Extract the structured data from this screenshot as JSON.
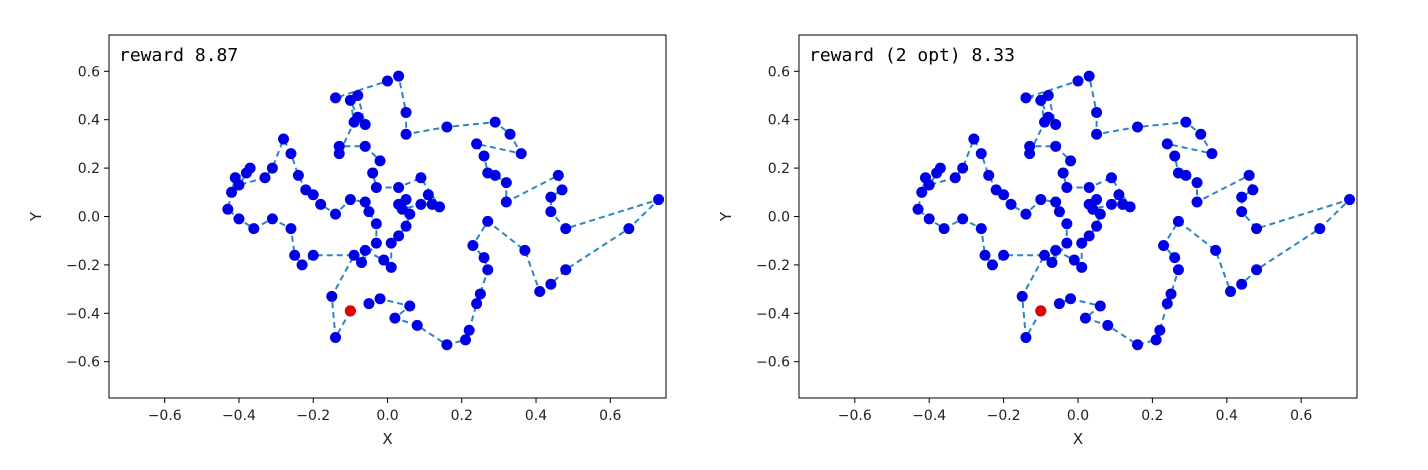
{
  "chart_data": [
    {
      "type": "line",
      "annotation": "reward 8.87",
      "xlabel": "X",
      "ylabel": "Y",
      "xlim": [
        -0.75,
        0.75
      ],
      "ylim": [
        -0.75,
        0.75
      ],
      "xticks": [
        -0.6,
        -0.4,
        -0.2,
        0.0,
        0.2,
        0.4,
        0.6
      ],
      "xtick_labels": [
        "−0.6",
        "−0.4",
        "−0.2",
        "0.0",
        "0.2",
        "0.4",
        "0.6"
      ],
      "yticks": [
        -0.6,
        -0.4,
        -0.2,
        0.0,
        0.2,
        0.4,
        0.6
      ],
      "ytick_labels": [
        "−0.6",
        "−0.4",
        "−0.2",
        "0.0",
        "0.2",
        "0.4",
        "0.6"
      ],
      "grid": false,
      "line_color": "#2e86c1",
      "point_color": "#0000e6",
      "start_color": "#e60000",
      "path": [
        [
          -0.1,
          -0.39
        ],
        [
          -0.14,
          -0.5
        ],
        [
          -0.15,
          -0.33
        ],
        [
          -0.09,
          -0.16
        ],
        [
          -0.2,
          -0.16
        ],
        [
          -0.23,
          -0.2
        ],
        [
          -0.25,
          -0.16
        ],
        [
          -0.26,
          -0.05
        ],
        [
          -0.31,
          -0.01
        ],
        [
          -0.36,
          -0.05
        ],
        [
          -0.4,
          -0.01
        ],
        [
          -0.43,
          0.03
        ],
        [
          -0.42,
          0.1
        ],
        [
          -0.41,
          0.16
        ],
        [
          -0.38,
          0.18
        ],
        [
          -0.37,
          0.2
        ],
        [
          -0.4,
          0.13
        ],
        [
          -0.33,
          0.16
        ],
        [
          -0.31,
          0.2
        ],
        [
          -0.28,
          0.32
        ],
        [
          -0.26,
          0.26
        ],
        [
          -0.24,
          0.17
        ],
        [
          -0.22,
          0.11
        ],
        [
          -0.2,
          0.09
        ],
        [
          -0.18,
          0.05
        ],
        [
          -0.14,
          0.01
        ],
        [
          -0.1,
          0.07
        ],
        [
          -0.06,
          0.06
        ],
        [
          -0.05,
          0.02
        ],
        [
          -0.03,
          -0.03
        ],
        [
          -0.03,
          -0.11
        ],
        [
          -0.07,
          -0.19
        ],
        [
          -0.06,
          -0.14
        ],
        [
          -0.01,
          -0.18
        ],
        [
          0.01,
          -0.21
        ],
        [
          0.01,
          -0.11
        ],
        [
          0.03,
          -0.08
        ],
        [
          0.05,
          -0.04
        ],
        [
          0.06,
          0.01
        ],
        [
          0.03,
          0.05
        ],
        [
          0.05,
          0.07
        ],
        [
          0.04,
          0.03
        ],
        [
          0.09,
          0.05
        ],
        [
          0.11,
          0.09
        ],
        [
          0.12,
          0.05
        ],
        [
          0.14,
          0.04
        ],
        [
          0.09,
          0.16
        ],
        [
          0.03,
          0.12
        ],
        [
          -0.03,
          0.12
        ],
        [
          -0.04,
          0.18
        ],
        [
          -0.02,
          0.23
        ],
        [
          -0.06,
          0.29
        ],
        [
          -0.13,
          0.29
        ],
        [
          -0.13,
          0.26
        ],
        [
          -0.09,
          0.39
        ],
        [
          -0.1,
          0.48
        ],
        [
          -0.08,
          0.41
        ],
        [
          -0.06,
          0.38
        ],
        [
          -0.08,
          0.5
        ],
        [
          -0.14,
          0.49
        ],
        [
          0.0,
          0.56
        ],
        [
          0.03,
          0.58
        ],
        [
          0.05,
          0.43
        ],
        [
          0.05,
          0.34
        ],
        [
          0.16,
          0.37
        ],
        [
          0.29,
          0.39
        ],
        [
          0.33,
          0.34
        ],
        [
          0.36,
          0.26
        ],
        [
          0.24,
          0.3
        ],
        [
          0.26,
          0.25
        ],
        [
          0.27,
          0.18
        ],
        [
          0.29,
          0.17
        ],
        [
          0.32,
          0.14
        ],
        [
          0.32,
          0.06
        ],
        [
          0.46,
          0.17
        ],
        [
          0.47,
          0.11
        ],
        [
          0.44,
          0.08
        ],
        [
          0.44,
          0.02
        ],
        [
          0.48,
          -0.05
        ],
        [
          0.73,
          0.07
        ],
        [
          0.65,
          -0.05
        ],
        [
          0.48,
          -0.22
        ],
        [
          0.44,
          -0.28
        ],
        [
          0.41,
          -0.31
        ],
        [
          0.37,
          -0.14
        ],
        [
          0.27,
          -0.02
        ],
        [
          0.23,
          -0.12
        ],
        [
          0.26,
          -0.17
        ],
        [
          0.27,
          -0.22
        ],
        [
          0.25,
          -0.32
        ],
        [
          0.24,
          -0.36
        ],
        [
          0.22,
          -0.47
        ],
        [
          0.21,
          -0.51
        ],
        [
          0.16,
          -0.53
        ],
        [
          0.08,
          -0.45
        ],
        [
          0.02,
          -0.42
        ],
        [
          0.06,
          -0.37
        ],
        [
          -0.02,
          -0.34
        ],
        [
          -0.05,
          -0.36
        ]
      ]
    },
    {
      "type": "line",
      "annotation": "reward (2 opt) 8.33",
      "xlabel": "X",
      "ylabel": "Y",
      "xlim": [
        -0.75,
        0.75
      ],
      "ylim": [
        -0.75,
        0.75
      ],
      "xticks": [
        -0.6,
        -0.4,
        -0.2,
        0.0,
        0.2,
        0.4,
        0.6
      ],
      "xtick_labels": [
        "−0.6",
        "−0.4",
        "−0.2",
        "0.0",
        "0.2",
        "0.4",
        "0.6"
      ],
      "yticks": [
        -0.6,
        -0.4,
        -0.2,
        0.0,
        0.2,
        0.4,
        0.6
      ],
      "ytick_labels": [
        "−0.6",
        "−0.4",
        "−0.2",
        "0.0",
        "0.2",
        "0.4",
        "0.6"
      ],
      "grid": false,
      "line_color": "#2e86c1",
      "point_color": "#0000e6",
      "start_color": "#e60000",
      "path": [
        [
          -0.1,
          -0.39
        ],
        [
          -0.14,
          -0.5
        ],
        [
          -0.15,
          -0.33
        ],
        [
          -0.09,
          -0.16
        ],
        [
          -0.2,
          -0.16
        ],
        [
          -0.23,
          -0.2
        ],
        [
          -0.25,
          -0.16
        ],
        [
          -0.26,
          -0.05
        ],
        [
          -0.31,
          -0.01
        ],
        [
          -0.36,
          -0.05
        ],
        [
          -0.4,
          -0.01
        ],
        [
          -0.43,
          0.03
        ],
        [
          -0.42,
          0.1
        ],
        [
          -0.41,
          0.16
        ],
        [
          -0.38,
          0.18
        ],
        [
          -0.37,
          0.2
        ],
        [
          -0.4,
          0.13
        ],
        [
          -0.33,
          0.16
        ],
        [
          -0.31,
          0.2
        ],
        [
          -0.28,
          0.32
        ],
        [
          -0.26,
          0.26
        ],
        [
          -0.24,
          0.17
        ],
        [
          -0.22,
          0.11
        ],
        [
          -0.2,
          0.09
        ],
        [
          -0.18,
          0.05
        ],
        [
          -0.14,
          0.01
        ],
        [
          -0.1,
          0.07
        ],
        [
          -0.06,
          0.06
        ],
        [
          -0.05,
          0.02
        ],
        [
          -0.03,
          -0.03
        ],
        [
          -0.03,
          -0.11
        ],
        [
          -0.07,
          -0.19
        ],
        [
          -0.06,
          -0.14
        ],
        [
          -0.01,
          -0.18
        ],
        [
          0.01,
          -0.21
        ],
        [
          0.01,
          -0.11
        ],
        [
          0.03,
          -0.08
        ],
        [
          0.05,
          -0.04
        ],
        [
          0.06,
          0.01
        ],
        [
          0.03,
          0.05
        ],
        [
          0.05,
          0.07
        ],
        [
          0.04,
          0.03
        ],
        [
          0.09,
          0.05
        ],
        [
          0.11,
          0.09
        ],
        [
          0.12,
          0.05
        ],
        [
          0.14,
          0.04
        ],
        [
          0.09,
          0.16
        ],
        [
          0.03,
          0.12
        ],
        [
          -0.03,
          0.12
        ],
        [
          -0.04,
          0.18
        ],
        [
          -0.02,
          0.23
        ],
        [
          -0.06,
          0.29
        ],
        [
          -0.13,
          0.29
        ],
        [
          -0.13,
          0.26
        ],
        [
          -0.09,
          0.39
        ],
        [
          -0.1,
          0.48
        ],
        [
          -0.08,
          0.41
        ],
        [
          -0.06,
          0.38
        ],
        [
          -0.08,
          0.5
        ],
        [
          -0.14,
          0.49
        ],
        [
          0.0,
          0.56
        ],
        [
          0.03,
          0.58
        ],
        [
          0.05,
          0.43
        ],
        [
          0.05,
          0.34
        ],
        [
          0.16,
          0.37
        ],
        [
          0.29,
          0.39
        ],
        [
          0.33,
          0.34
        ],
        [
          0.36,
          0.26
        ],
        [
          0.24,
          0.3
        ],
        [
          0.26,
          0.25
        ],
        [
          0.27,
          0.18
        ],
        [
          0.29,
          0.17
        ],
        [
          0.32,
          0.14
        ],
        [
          0.32,
          0.06
        ],
        [
          0.46,
          0.17
        ],
        [
          0.47,
          0.11
        ],
        [
          0.44,
          0.08
        ],
        [
          0.44,
          0.02
        ],
        [
          0.48,
          -0.05
        ],
        [
          0.73,
          0.07
        ],
        [
          0.65,
          -0.05
        ],
        [
          0.48,
          -0.22
        ],
        [
          0.44,
          -0.28
        ],
        [
          0.41,
          -0.31
        ],
        [
          0.37,
          -0.14
        ],
        [
          0.27,
          -0.02
        ],
        [
          0.23,
          -0.12
        ],
        [
          0.26,
          -0.17
        ],
        [
          0.27,
          -0.22
        ],
        [
          0.25,
          -0.32
        ],
        [
          0.24,
          -0.36
        ],
        [
          0.22,
          -0.47
        ],
        [
          0.21,
          -0.51
        ],
        [
          0.16,
          -0.53
        ],
        [
          0.08,
          -0.45
        ],
        [
          0.02,
          -0.42
        ],
        [
          0.06,
          -0.37
        ],
        [
          -0.02,
          -0.34
        ],
        [
          -0.05,
          -0.36
        ]
      ]
    }
  ]
}
